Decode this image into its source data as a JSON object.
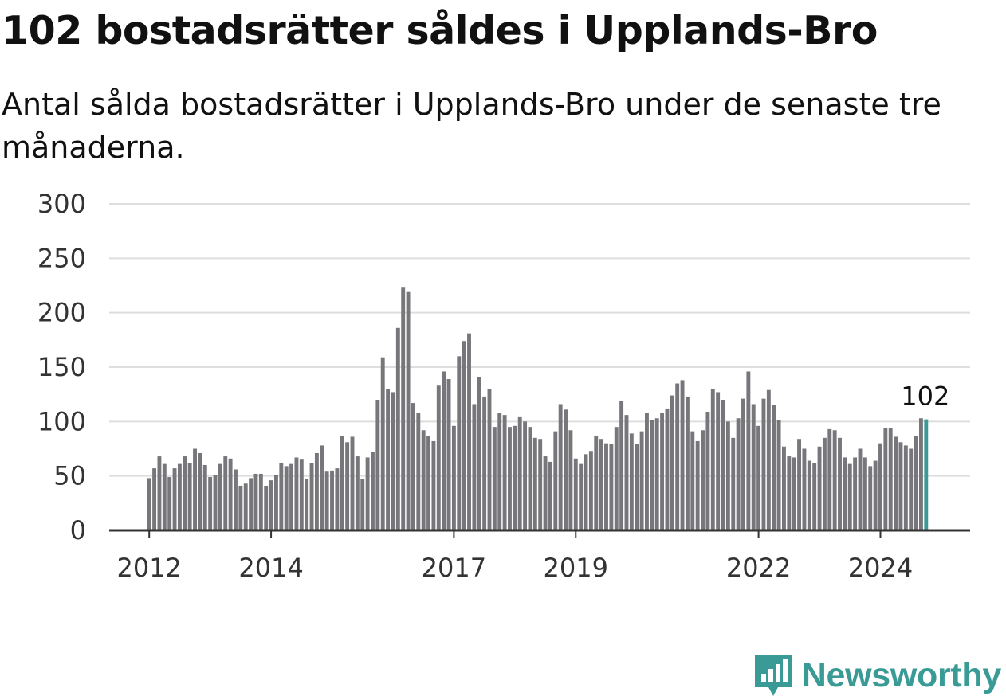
{
  "title": "102 bostadsrätter såldes i Upplands-Bro",
  "subtitle": "Antal sålda bostadsrätter i Upplands-Bro under de senaste tre månaderna.",
  "brand": {
    "name": "Newsworthy",
    "logo_icon": "newsworthy-logo-icon",
    "color": "#3a9b96"
  },
  "colors": {
    "bar": "#77767b",
    "highlight": "#3a9b96",
    "grid": "#dedede",
    "axis": "#333333"
  },
  "chart_data": {
    "type": "bar",
    "ylim": [
      0,
      300
    ],
    "yticks": [
      0,
      50,
      100,
      150,
      200,
      250,
      300
    ],
    "xticks": [
      {
        "label": "2012",
        "index": 0
      },
      {
        "label": "2014",
        "index": 24
      },
      {
        "label": "2017",
        "index": 60
      },
      {
        "label": "2019",
        "index": 84
      },
      {
        "label": "2022",
        "index": 120
      },
      {
        "label": "2024",
        "index": 144
      }
    ],
    "x_start": "2012-01",
    "grid": true,
    "highlight_index": 153,
    "highlight_label": "102",
    "values": [
      48,
      57,
      68,
      61,
      49,
      57,
      61,
      68,
      62,
      75,
      71,
      60,
      49,
      51,
      61,
      68,
      66,
      56,
      41,
      43,
      48,
      52,
      52,
      41,
      46,
      51,
      62,
      59,
      61,
      67,
      65,
      47,
      62,
      71,
      78,
      54,
      55,
      57,
      87,
      81,
      86,
      68,
      47,
      67,
      72,
      120,
      159,
      130,
      127,
      186,
      223,
      219,
      117,
      108,
      92,
      87,
      82,
      133,
      146,
      139,
      96,
      160,
      174,
      181,
      116,
      141,
      123,
      130,
      95,
      108,
      106,
      95,
      96,
      104,
      100,
      95,
      85,
      84,
      68,
      63,
      91,
      116,
      111,
      92,
      66,
      61,
      70,
      73,
      87,
      84,
      80,
      79,
      95,
      119,
      106,
      89,
      79,
      91,
      108,
      101,
      103,
      108,
      112,
      124,
      135,
      138,
      123,
      91,
      82,
      92,
      109,
      130,
      127,
      120,
      100,
      85,
      103,
      121,
      146,
      116,
      96,
      121,
      129,
      115,
      101,
      77,
      68,
      67,
      84,
      75,
      64,
      62,
      77,
      85,
      93,
      92,
      85,
      67,
      61,
      67,
      75,
      67,
      59,
      64,
      80,
      94,
      94,
      86,
      81,
      78,
      75,
      87,
      103,
      102
    ]
  }
}
